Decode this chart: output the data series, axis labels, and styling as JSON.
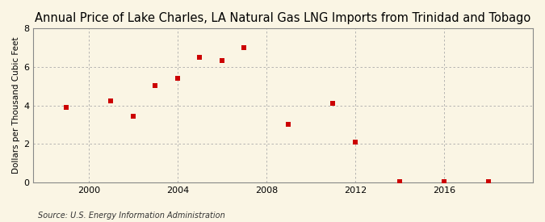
{
  "title": "Annual Price of Lake Charles, LA Natural Gas LNG Imports from Trinidad and Tobago",
  "ylabel": "Dollars per Thousand Cubic Feet",
  "source": "Source: U.S. Energy Information Administration",
  "x_data": [
    1999,
    2001,
    2002,
    2003,
    2004,
    2005,
    2006,
    2007,
    2009,
    2011,
    2012,
    2014,
    2016,
    2018
  ],
  "y_data": [
    3.92,
    4.22,
    3.42,
    5.02,
    5.42,
    6.52,
    6.32,
    7.02,
    3.02,
    4.12,
    2.1,
    0.02,
    0.02,
    0.02
  ],
  "marker_color": "#cc0000",
  "marker_size": 4.5,
  "background_color": "#faf5e4",
  "plot_bg_color": "#faf5e4",
  "grid_color": "#aaaaaa",
  "ylim": [
    0,
    8
  ],
  "yticks": [
    0,
    2,
    4,
    6,
    8
  ],
  "xlim": [
    1997.5,
    2020
  ],
  "xticks": [
    2000,
    2004,
    2008,
    2012,
    2016
  ],
  "title_fontsize": 10.5,
  "ylabel_fontsize": 7.5,
  "source_fontsize": 7,
  "tick_fontsize": 8
}
